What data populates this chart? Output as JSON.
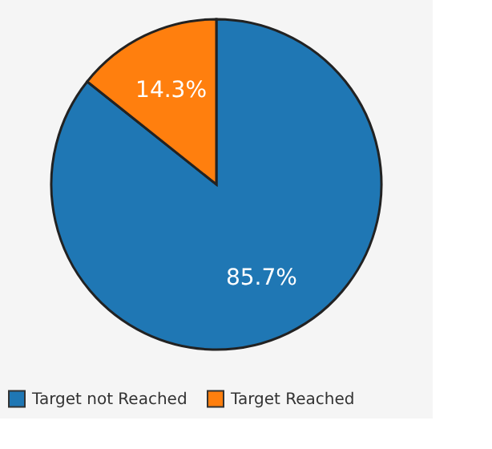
{
  "chart_data": {
    "type": "pie",
    "categories": [
      "Target not Reached",
      "Target Reached"
    ],
    "values": [
      85.7,
      14.3
    ],
    "colors": [
      "#1f77b4",
      "#ff7f0e"
    ],
    "value_labels": [
      "85.7%",
      "14.3%"
    ],
    "legend": "bottom"
  }
}
